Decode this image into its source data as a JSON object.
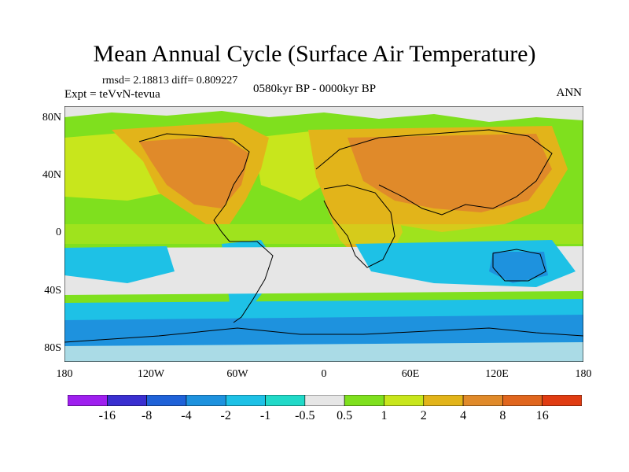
{
  "title": "Mean Annual Cycle (Surface Air Temperature)",
  "stats": "rmsd= 2.18813  diff= 0.809227",
  "experiment": "Expt = teVvN-tevua",
  "period": "0580kyr BP - 0000kyr BP",
  "season": "ANN",
  "lat_labels": [
    "80N",
    "40N",
    "0",
    "40S",
    "80S"
  ],
  "lon_labels": [
    "180",
    "120W",
    "60W",
    "0",
    "60E",
    "120E",
    "180"
  ],
  "colorbar": {
    "labels": [
      "-16",
      "-8",
      "-4",
      "-2",
      "-1",
      "-0.5",
      "0.5",
      "1",
      "2",
      "4",
      "8",
      "16"
    ],
    "colors": [
      "#9f1fef",
      "#3a2fd0",
      "#1f62d8",
      "#1e92de",
      "#1ec1e6",
      "#21d9c8",
      "#e6e6e6",
      "#7fe01e",
      "#c8e61c",
      "#e2b41a",
      "#e08a2a",
      "#e0661e",
      "#e03c12"
    ]
  },
  "map_colors": {
    "ocean_base": "#7fe01e",
    "warm_land": "#e08a2a",
    "mid_land": "#e2b41a",
    "yellow_green": "#c8e61c",
    "neutral": "#e6e6e6",
    "cool": "#1ec1e6",
    "cold": "#1e92de",
    "teal": "#21d9c8"
  }
}
